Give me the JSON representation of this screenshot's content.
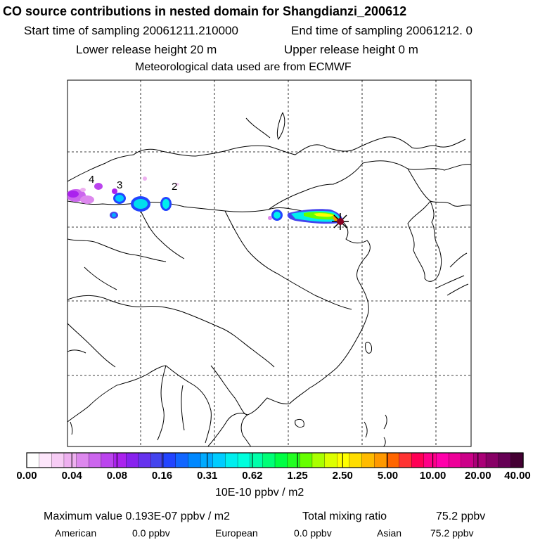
{
  "header": {
    "title": "CO  source contributions in nested domain for Shangdianzi_200612",
    "start_label": "Start time of sampling 20061211.210000",
    "end_label": "End time of sampling 20061212.     0",
    "lower_label": "Lower release height   20 m",
    "upper_label": "Upper release height    0 m",
    "met_label": "Meteorological data used are from ECMWF"
  },
  "map": {
    "region_labels": [
      "4",
      "3",
      "2"
    ],
    "station_marker": "star-marker"
  },
  "colorbar": {
    "colors": [
      "#ffffff",
      "#fde6fb",
      "#f7ccf5",
      "#eeb0f0",
      "#dd88ee",
      "#cc66ee",
      "#bb44ee",
      "#aa22ee",
      "#8822ee",
      "#6633ee",
      "#4444ee",
      "#2244ff",
      "#1166ff",
      "#0088ff",
      "#00aaff",
      "#00ccff",
      "#00eeee",
      "#00ffdd",
      "#00ffaa",
      "#00ff77",
      "#00ff44",
      "#22ff22",
      "#66ff00",
      "#aaff00",
      "#ddff00",
      "#ffff00",
      "#ffdd00",
      "#ffbb00",
      "#ff9900",
      "#ff6600",
      "#ff3333",
      "#ff0055",
      "#ff0088",
      "#ff00aa",
      "#ee0099",
      "#cc0088",
      "#aa0077",
      "#880066",
      "#660055",
      "#440033"
    ],
    "ticks": [
      "0.00",
      "0.04",
      "0.08",
      "0.16",
      "0.31",
      "0.62",
      "1.25",
      "2.50",
      "5.00",
      "10.00",
      "20.00",
      "40.00"
    ],
    "units": "10E-10 ppbv / m2"
  },
  "footer": {
    "max_label": "Maximum value  0.193E-07 ppbv / m2",
    "total_label": "Total mixing ratio",
    "total_value": "75.2 ppbv",
    "american_label": "American",
    "american_value": "0.0 ppbv",
    "european_label": "European",
    "european_value": "0.0 ppbv",
    "asian_label": "Asian",
    "asian_value": "75.2 ppbv"
  }
}
